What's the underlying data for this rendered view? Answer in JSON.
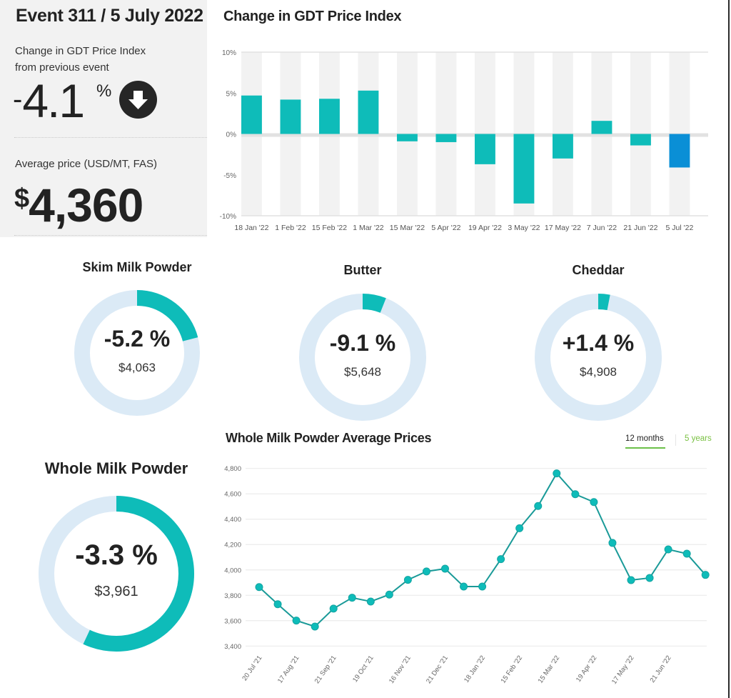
{
  "summary": {
    "event_title": "Event 311 / 5 July 2022",
    "change_label": "Change in GDT Price Index from previous event",
    "change_sign": "-",
    "change_value": "4.1",
    "change_unit": "%",
    "change_direction_icon": "arrow-down-circle-icon",
    "price_label": "Average price (USD/MT, FAS)",
    "price_currency": "$",
    "price_value": "4,360"
  },
  "colors": {
    "teal": "#0ebcb9",
    "current_bar": "#0a8fd6",
    "donut_track": "#dbeaf6",
    "panel_bg": "#f2f2f2",
    "tab_accent": "#6cc04a",
    "tab_inactive_text": "#7ac143",
    "line": "#1a9a98"
  },
  "chart_data": [
    {
      "type": "bar",
      "title": "Change in GDT Price Index",
      "xlabel": "",
      "ylabel": "",
      "ylim": [
        -10,
        10
      ],
      "yticks": [
        10,
        5,
        0,
        -5,
        -10
      ],
      "ytick_labels": [
        "10%",
        "5%",
        "0%",
        "-5%",
        "-10%"
      ],
      "categories": [
        "18 Jan '22",
        "1 Feb '22",
        "15 Feb '22",
        "1 Mar '22",
        "15 Mar '22",
        "5 Apr '22",
        "19 Apr '22",
        "3 May '22",
        "17 May '22",
        "7 Jun '22",
        "21 Jun '22",
        "5 Jul '22"
      ],
      "values": [
        4.7,
        4.2,
        4.3,
        5.3,
        -0.9,
        -1.0,
        -3.7,
        -8.5,
        -3.0,
        1.6,
        -1.4,
        -4.1
      ],
      "highlight_index": 11,
      "grid": "alternating column bands",
      "legend": "none"
    },
    {
      "type": "line",
      "title": "Whole Milk Powder Average Prices",
      "xlabel": "",
      "ylabel": "",
      "ylim": [
        3400,
        4800
      ],
      "yticks": [
        4800,
        4600,
        4400,
        4200,
        4000,
        3800,
        3600,
        3400
      ],
      "ytick_labels": [
        "4,800",
        "4,600",
        "4,400",
        "4,200",
        "4,000",
        "3,800",
        "3,600",
        "3,400"
      ],
      "xtick_labels": [
        "20 Jul '21",
        "17 Aug '21",
        "21 Sep '21",
        "19 Oct '21",
        "16 Nov '21",
        "21 Dec '21",
        "18 Jan '22",
        "15 Feb '22",
        "15 Mar '22",
        "19 Apr '22",
        "17 May '22",
        "21 Jun '22"
      ],
      "series": [
        {
          "name": "Whole Milk Powder",
          "values": [
            3865,
            3730,
            3601,
            3554,
            3695,
            3781,
            3751,
            3806,
            3922,
            3988,
            4010,
            3869,
            3869,
            4085,
            4329,
            4504,
            4761,
            4597,
            4535,
            4213,
            3920,
            3937,
            4162,
            4128,
            3961
          ]
        }
      ],
      "grid": "horizontal",
      "legend": "none"
    }
  ],
  "products": [
    {
      "name": "Skim Milk Powder",
      "change": "-5.2 %",
      "price": "$4,063",
      "share": 0.21
    },
    {
      "name": "Butter",
      "change": "-9.1 %",
      "price": "$5,648",
      "share": 0.06
    },
    {
      "name": "Cheddar",
      "change": "+1.4 %",
      "price": "$4,908",
      "share": 0.03
    },
    {
      "name": "Whole Milk Powder",
      "change": "-3.3 %",
      "price": "$3,961",
      "share": 0.57
    }
  ],
  "range_tabs": [
    {
      "label": "12 months",
      "active": true
    },
    {
      "label": "5 years",
      "active": false
    }
  ]
}
